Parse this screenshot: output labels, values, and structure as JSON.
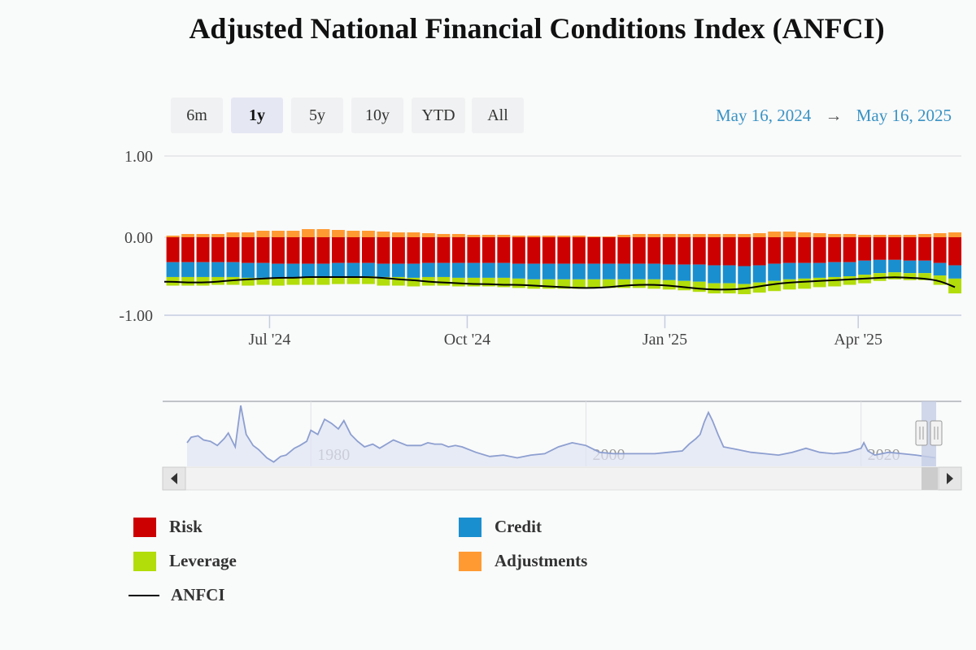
{
  "title": "Adjusted National Financial Conditions Index (ANFCI)",
  "range_selector": {
    "buttons": [
      "6m",
      "1y",
      "5y",
      "10y",
      "YTD",
      "All"
    ],
    "active": "1y"
  },
  "date_range": {
    "from": "May 16, 2024",
    "arrow": "→",
    "to": "May 16, 2025"
  },
  "colors": {
    "risk": "#cc0000",
    "credit": "#1a8fcf",
    "leverage": "#b2dd0a",
    "adjustments": "#ff9a33",
    "anfci": "#000000",
    "navigator": "#8d9fd0"
  },
  "icons": {
    "scroll_left": "triangle-left-icon",
    "scroll_right": "triangle-right-icon",
    "handle": "grip-handle-icon"
  },
  "chart_data": [
    {
      "type": "bar",
      "stacked": true,
      "title": "Adjusted National Financial Conditions Index (ANFCI)",
      "x_tick_labels": [
        "Jul '24",
        "Oct '24",
        "Jan '25",
        "Apr '25"
      ],
      "y_tick_labels": [
        "1.00",
        "0.00",
        "-1.00"
      ],
      "ylim": [
        -1.0,
        1.0
      ],
      "grid": "horizontal",
      "legend_position": "bottom",
      "x": [
        "2024-05-17",
        "2024-05-24",
        "2024-05-31",
        "2024-06-07",
        "2024-06-14",
        "2024-06-21",
        "2024-06-28",
        "2024-07-05",
        "2024-07-12",
        "2024-07-19",
        "2024-07-26",
        "2024-08-02",
        "2024-08-09",
        "2024-08-16",
        "2024-08-23",
        "2024-08-30",
        "2024-09-06",
        "2024-09-13",
        "2024-09-20",
        "2024-09-27",
        "2024-10-04",
        "2024-10-11",
        "2024-10-18",
        "2024-10-25",
        "2024-11-01",
        "2024-11-08",
        "2024-11-15",
        "2024-11-22",
        "2024-11-29",
        "2024-12-06",
        "2024-12-13",
        "2024-12-20",
        "2024-12-27",
        "2025-01-03",
        "2025-01-10",
        "2025-01-17",
        "2025-01-24",
        "2025-01-31",
        "2025-02-07",
        "2025-02-14",
        "2025-02-21",
        "2025-02-28",
        "2025-03-07",
        "2025-03-14",
        "2025-03-21",
        "2025-03-28",
        "2025-04-04",
        "2025-04-11",
        "2025-04-18",
        "2025-04-25",
        "2025-05-02",
        "2025-05-09",
        "2025-05-16"
      ],
      "series": [
        {
          "name": "Risk",
          "values": [
            -0.32,
            -0.32,
            -0.32,
            -0.32,
            -0.32,
            -0.33,
            -0.33,
            -0.34,
            -0.34,
            -0.34,
            -0.34,
            -0.33,
            -0.33,
            -0.33,
            -0.34,
            -0.34,
            -0.34,
            -0.33,
            -0.33,
            -0.33,
            -0.33,
            -0.33,
            -0.33,
            -0.34,
            -0.34,
            -0.34,
            -0.34,
            -0.34,
            -0.34,
            -0.34,
            -0.34,
            -0.34,
            -0.34,
            -0.35,
            -0.35,
            -0.35,
            -0.36,
            -0.36,
            -0.37,
            -0.36,
            -0.34,
            -0.33,
            -0.33,
            -0.33,
            -0.32,
            -0.32,
            -0.3,
            -0.29,
            -0.29,
            -0.3,
            -0.3,
            -0.33,
            -0.36
          ]
        },
        {
          "name": "Credit",
          "values": [
            -0.19,
            -0.19,
            -0.19,
            -0.19,
            -0.19,
            -0.19,
            -0.19,
            -0.19,
            -0.18,
            -0.17,
            -0.17,
            -0.17,
            -0.17,
            -0.17,
            -0.17,
            -0.17,
            -0.18,
            -0.18,
            -0.18,
            -0.19,
            -0.19,
            -0.19,
            -0.19,
            -0.19,
            -0.2,
            -0.2,
            -0.2,
            -0.2,
            -0.2,
            -0.2,
            -0.2,
            -0.2,
            -0.2,
            -0.2,
            -0.21,
            -0.22,
            -0.23,
            -0.23,
            -0.23,
            -0.22,
            -0.22,
            -0.21,
            -0.2,
            -0.19,
            -0.19,
            -0.18,
            -0.18,
            -0.17,
            -0.16,
            -0.16,
            -0.16,
            -0.16,
            -0.17
          ]
        },
        {
          "name": "Leverage",
          "values": [
            -0.11,
            -0.11,
            -0.11,
            -0.1,
            -0.1,
            -0.1,
            -0.09,
            -0.09,
            -0.09,
            -0.1,
            -0.1,
            -0.1,
            -0.1,
            -0.1,
            -0.11,
            -0.11,
            -0.11,
            -0.11,
            -0.11,
            -0.11,
            -0.11,
            -0.11,
            -0.12,
            -0.12,
            -0.12,
            -0.12,
            -0.12,
            -0.12,
            -0.11,
            -0.11,
            -0.11,
            -0.11,
            -0.12,
            -0.12,
            -0.12,
            -0.13,
            -0.13,
            -0.13,
            -0.13,
            -0.13,
            -0.13,
            -0.13,
            -0.13,
            -0.12,
            -0.12,
            -0.11,
            -0.11,
            -0.1,
            -0.09,
            -0.09,
            -0.09,
            -0.12,
            -0.19
          ]
        },
        {
          "name": "Adjustments",
          "values": [
            0.02,
            0.04,
            0.04,
            0.04,
            0.06,
            0.06,
            0.08,
            0.08,
            0.08,
            0.1,
            0.1,
            0.09,
            0.08,
            0.08,
            0.07,
            0.06,
            0.06,
            0.05,
            0.04,
            0.04,
            0.03,
            0.03,
            0.03,
            0.02,
            0.02,
            0.02,
            0.02,
            0.02,
            0.01,
            0.01,
            0.03,
            0.04,
            0.04,
            0.04,
            0.04,
            0.04,
            0.04,
            0.04,
            0.04,
            0.05,
            0.07,
            0.07,
            0.06,
            0.05,
            0.04,
            0.04,
            0.03,
            0.03,
            0.03,
            0.03,
            0.04,
            0.05,
            0.06
          ]
        },
        {
          "name": "ANFCI",
          "type": "line",
          "values": [
            -0.57,
            -0.58,
            -0.58,
            -0.57,
            -0.55,
            -0.54,
            -0.53,
            -0.52,
            -0.52,
            -0.51,
            -0.51,
            -0.51,
            -0.51,
            -0.51,
            -0.52,
            -0.54,
            -0.55,
            -0.57,
            -0.58,
            -0.59,
            -0.6,
            -0.6,
            -0.61,
            -0.61,
            -0.62,
            -0.63,
            -0.64,
            -0.65,
            -0.65,
            -0.64,
            -0.62,
            -0.61,
            -0.61,
            -0.62,
            -0.64,
            -0.66,
            -0.67,
            -0.67,
            -0.66,
            -0.63,
            -0.6,
            -0.58,
            -0.57,
            -0.56,
            -0.55,
            -0.54,
            -0.53,
            -0.52,
            -0.51,
            -0.52,
            -0.53,
            -0.56,
            -0.64
          ]
        }
      ]
    },
    {
      "type": "area",
      "title": "",
      "x_tick_labels": [
        "1980",
        "2000",
        "2020"
      ],
      "x": [
        1971.0,
        1971.3,
        1971.8,
        1972.2,
        1972.7,
        1973.2,
        1973.7,
        1974.0,
        1974.5,
        1974.9,
        1975.3,
        1975.8,
        1976.2,
        1976.8,
        1977.3,
        1977.8,
        1978.2,
        1978.8,
        1979.2,
        1979.7,
        1980.0,
        1980.5,
        1981.0,
        1981.5,
        1982.0,
        1982.4,
        1982.9,
        1983.4,
        1983.9,
        1984.5,
        1985.0,
        1985.5,
        1986.0,
        1986.5,
        1987.0,
        1987.5,
        1988.0,
        1988.5,
        1989.0,
        1989.5,
        1990.0,
        1990.5,
        1991.0,
        1992.0,
        1993.0,
        1994.0,
        1995.0,
        1996.0,
        1997.0,
        1998.0,
        1999.0,
        2000.0,
        2001.0,
        2002.0,
        2003.0,
        2004.0,
        2005.0,
        2006.0,
        2007.0,
        2007.5,
        2008.0,
        2008.3,
        2008.6,
        2008.9,
        2009.2,
        2009.6,
        2010.0,
        2011.0,
        2012.0,
        2013.0,
        2014.0,
        2015.0,
        2016.0,
        2017.0,
        2018.0,
        2019.0,
        2020.0,
        2020.2,
        2020.5,
        2021.0,
        2022.0,
        2023.0,
        2024.0,
        2025.4
      ],
      "values": [
        0.6,
        1.0,
        1.1,
        0.8,
        0.7,
        0.4,
        0.9,
        1.3,
        0.3,
        3.3,
        1.2,
        0.4,
        0.1,
        -0.5,
        -0.8,
        -0.4,
        -0.3,
        0.2,
        0.4,
        0.7,
        1.5,
        1.2,
        2.3,
        2.0,
        1.6,
        2.2,
        1.2,
        0.7,
        0.3,
        0.5,
        0.2,
        0.5,
        0.8,
        0.6,
        0.4,
        0.4,
        0.4,
        0.6,
        0.5,
        0.5,
        0.3,
        0.4,
        0.3,
        -0.1,
        -0.4,
        -0.3,
        -0.5,
        -0.3,
        -0.2,
        0.3,
        0.6,
        0.4,
        -0.1,
        -0.2,
        -0.2,
        -0.2,
        -0.2,
        -0.1,
        0.0,
        0.5,
        0.9,
        1.2,
        2.1,
        2.8,
        2.2,
        1.2,
        0.3,
        0.1,
        -0.1,
        -0.2,
        -0.3,
        -0.1,
        0.2,
        -0.1,
        -0.2,
        -0.1,
        0.2,
        0.6,
        0.0,
        -0.3,
        -0.1,
        -0.2,
        -0.3,
        -0.5
      ]
    }
  ],
  "legend": [
    {
      "name": "Risk",
      "color_key": "risk",
      "kind": "box"
    },
    {
      "name": "Credit",
      "color_key": "credit",
      "kind": "box"
    },
    {
      "name": "Leverage",
      "color_key": "leverage",
      "kind": "box"
    },
    {
      "name": "Adjustments",
      "color_key": "adjustments",
      "kind": "box"
    },
    {
      "name": "ANFCI",
      "color_key": "anfci",
      "kind": "line"
    }
  ]
}
